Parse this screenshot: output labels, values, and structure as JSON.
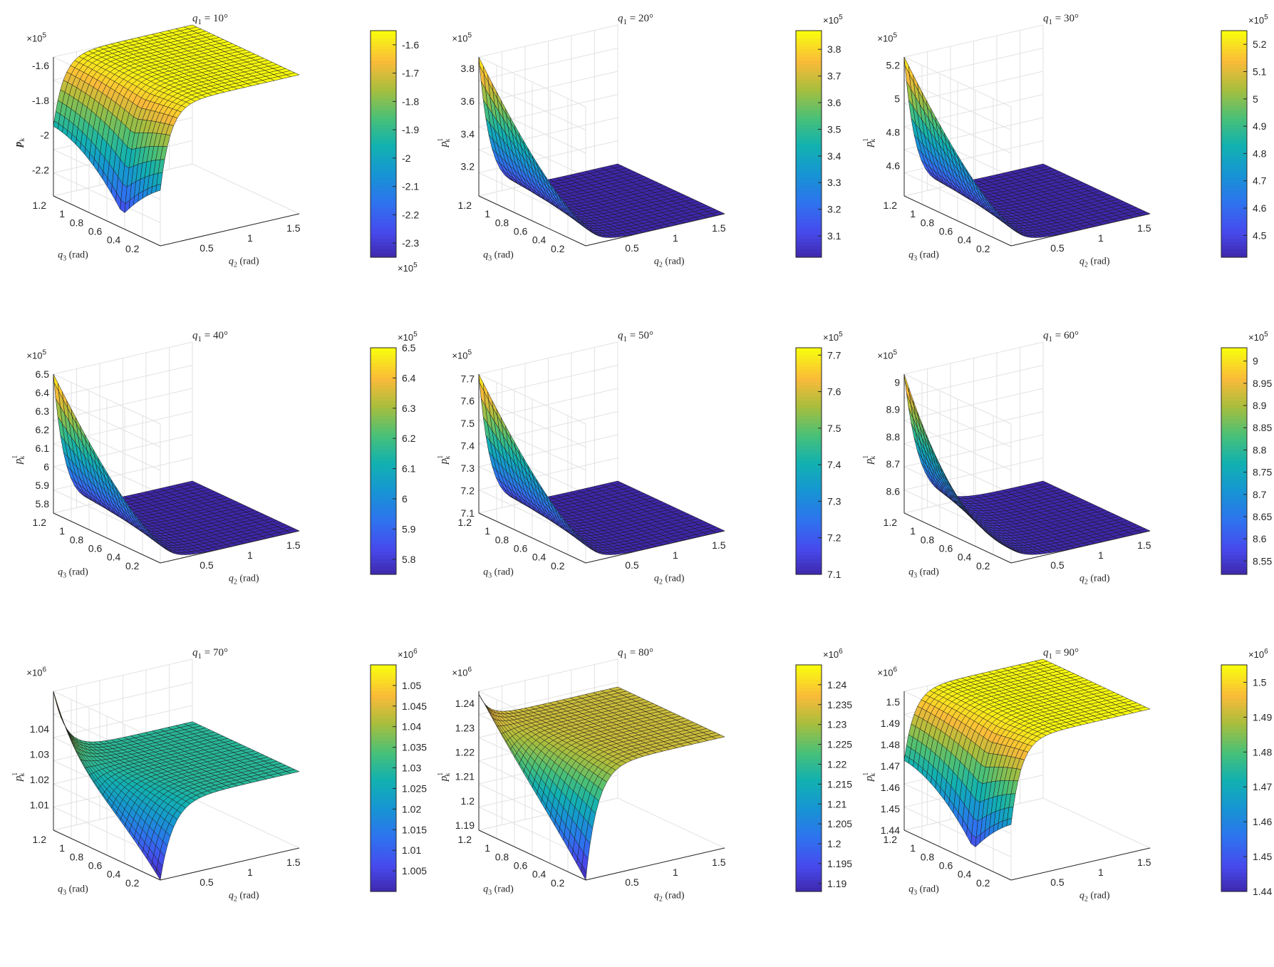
{
  "chart_data": [
    {
      "type": "surface",
      "title": "q_1 = 10°",
      "title_main": "q",
      "title_sub": "1",
      "title_rest": " = 10°",
      "zlabel_main": "p",
      "zlabel_sub": "k",
      "zlabel_sup": "",
      "z_exponent": "×10^5",
      "z_ticks": [
        "-1.6",
        "-1.8",
        "-2",
        "-2.2"
      ],
      "cbar_exponent": "×10^5",
      "cbar_ticks": [
        "-1.6",
        "-1.7",
        "-1.8",
        "-1.9",
        "-2",
        "-2.1",
        "-2.2",
        "-2.3"
      ],
      "cbar_exp_position": "bottom",
      "zlim": [
        -2.35,
        -1.55
      ],
      "clim": [
        -2.35,
        -1.55
      ],
      "shape": "plateau_high",
      "xlabel": "q_2 (rad)",
      "ylabel": "q_3 (rad)",
      "x_ticks": [
        "0.5",
        "1",
        "1.5"
      ],
      "y_ticks": [
        "0.2",
        "0.4",
        "0.6",
        "0.8",
        "1",
        "1.2"
      ]
    },
    {
      "type": "surface",
      "title": "q_1 = 20°",
      "title_main": "q",
      "title_sub": "1",
      "title_rest": " = 20°",
      "zlabel_main": "p",
      "zlabel_sub": "k",
      "zlabel_sup": "1",
      "z_exponent": "×10^5",
      "z_ticks": [
        "3.8",
        "3.6",
        "3.4",
        "3.2"
      ],
      "cbar_exponent": "×10^5",
      "cbar_ticks": [
        "3.8",
        "3.7",
        "3.6",
        "3.5",
        "3.4",
        "3.3",
        "3.2",
        "3.1"
      ],
      "cbar_exp_position": "top",
      "zlim": [
        3.02,
        3.87
      ],
      "clim": [
        3.02,
        3.87
      ],
      "shape": "ridge_low",
      "xlabel": "q_2 (rad)",
      "ylabel": "q_3 (rad)",
      "x_ticks": [
        "0.5",
        "1",
        "1.5"
      ],
      "y_ticks": [
        "0.2",
        "0.4",
        "0.6",
        "0.8",
        "1",
        "1.2"
      ]
    },
    {
      "type": "surface",
      "title": "q_1 = 30°",
      "title_main": "q",
      "title_sub": "1",
      "title_rest": " = 30°",
      "zlabel_main": "p",
      "zlabel_sub": "k",
      "zlabel_sup": "1",
      "z_exponent": "×10^5",
      "z_ticks": [
        "5.2",
        "5",
        "4.8",
        "4.6"
      ],
      "cbar_exponent": "×10^5",
      "cbar_ticks": [
        "5.2",
        "5.1",
        "5",
        "4.9",
        "4.8",
        "4.7",
        "4.6",
        "4.5"
      ],
      "cbar_exp_position": "top",
      "zlim": [
        4.42,
        5.25
      ],
      "clim": [
        4.42,
        5.25
      ],
      "shape": "ridge_low",
      "xlabel": "q_2 (rad)",
      "ylabel": "q_3 (rad)",
      "x_ticks": [
        "0.5",
        "1",
        "1.5"
      ],
      "y_ticks": [
        "0.2",
        "0.4",
        "0.6",
        "0.8",
        "1",
        "1.2"
      ]
    },
    {
      "type": "surface",
      "title": "q_1 = 40°",
      "title_main": "q",
      "title_sub": "1",
      "title_rest": " = 40°",
      "zlabel_main": "p",
      "zlabel_sub": "k",
      "zlabel_sup": "1",
      "z_exponent": "×10^5",
      "z_ticks": [
        "6.5",
        "6.4",
        "6.3",
        "6.2",
        "6.1",
        "6",
        "5.9",
        "5.8"
      ],
      "cbar_exponent": "×10^5",
      "cbar_ticks": [
        "6.5",
        "6.4",
        "6.3",
        "6.2",
        "6.1",
        "6",
        "5.9",
        "5.8"
      ],
      "cbar_exp_position": "top",
      "zlim": [
        5.75,
        6.5
      ],
      "clim": [
        5.75,
        6.5
      ],
      "shape": "ridge_low",
      "xlabel": "q_2 (rad)",
      "ylabel": "q_3 (rad)",
      "x_ticks": [
        "0.5",
        "1",
        "1.5"
      ],
      "y_ticks": [
        "0.2",
        "0.4",
        "0.6",
        "0.8",
        "1",
        "1.2"
      ]
    },
    {
      "type": "surface",
      "title": "q_1 = 50°",
      "title_main": "q",
      "title_sub": "1",
      "title_rest": " = 50°",
      "zlabel_main": "p",
      "zlabel_sub": "k",
      "zlabel_sup": "1",
      "z_exponent": "×10^5",
      "z_ticks": [
        "7.7",
        "7.6",
        "7.5",
        "7.4",
        "7.3",
        "7.2",
        "7.1"
      ],
      "cbar_exponent": "×10^5",
      "cbar_ticks": [
        "7.7",
        "7.6",
        "7.5",
        "7.4",
        "7.3",
        "7.2",
        "7.1"
      ],
      "cbar_exp_position": "top",
      "zlim": [
        7.1,
        7.72
      ],
      "clim": [
        7.1,
        7.72
      ],
      "shape": "ridge_low",
      "xlabel": "q_2 (rad)",
      "ylabel": "q_3 (rad)",
      "x_ticks": [
        "0.5",
        "1",
        "1.5"
      ],
      "y_ticks": [
        "0.2",
        "0.4",
        "0.6",
        "0.8",
        "1",
        "1.2"
      ]
    },
    {
      "type": "surface",
      "title": "q_1 = 60°",
      "title_main": "q",
      "title_sub": "1",
      "title_rest": " = 60°",
      "zlabel_main": "p",
      "zlabel_sub": "k",
      "zlabel_sup": "1",
      "z_exponent": "×10^5",
      "z_ticks": [
        "9",
        "8.9",
        "8.8",
        "8.7",
        "8.6"
      ],
      "cbar_exponent": "×10^5",
      "cbar_ticks": [
        "9",
        "8.95",
        "8.9",
        "8.85",
        "8.8",
        "8.75",
        "8.7",
        "8.65",
        "8.6",
        "8.55"
      ],
      "cbar_exp_position": "top",
      "zlim": [
        8.52,
        9.03
      ],
      "clim": [
        8.52,
        9.03
      ],
      "shape": "ridge_drop",
      "xlabel": "q_2 (rad)",
      "ylabel": "q_3 (rad)",
      "x_ticks": [
        "0.5",
        "1",
        "1.5"
      ],
      "y_ticks": [
        "0.2",
        "0.4",
        "0.6",
        "0.8",
        "1",
        "1.2"
      ]
    },
    {
      "type": "surface",
      "title": "q_1 = 70°",
      "title_main": "q",
      "title_sub": "1",
      "title_rest": " = 70°",
      "zlabel_main": "p",
      "zlabel_sub": "k",
      "zlabel_sup": "1",
      "z_exponent": "×10^6",
      "z_ticks": [
        "1.04",
        "1.03",
        "1.02",
        "1.01"
      ],
      "cbar_exponent": "×10^6",
      "cbar_ticks": [
        "1.05",
        "1.045",
        "1.04",
        "1.035",
        "1.03",
        "1.025",
        "1.02",
        "1.015",
        "1.01",
        "1.005"
      ],
      "cbar_exp_position": "top",
      "zlim": [
        1.0,
        1.055
      ],
      "clim": [
        1.0,
        1.055
      ],
      "shape": "mid_plateau",
      "xlabel": "q_2 (rad)",
      "ylabel": "q_3 (rad)",
      "x_ticks": [
        "0.5",
        "1",
        "1.5"
      ],
      "y_ticks": [
        "0.2",
        "0.4",
        "0.6",
        "0.8",
        "1",
        "1.2"
      ]
    },
    {
      "type": "surface",
      "title": "q_1 = 80°",
      "title_main": "q",
      "title_sub": "1",
      "title_rest": " = 80°",
      "zlabel_main": "p",
      "zlabel_sub": "k",
      "zlabel_sup": "1",
      "z_exponent": "×10^6",
      "z_ticks": [
        "1.24",
        "1.23",
        "1.22",
        "1.21",
        "1.2",
        "1.19"
      ],
      "cbar_exponent": "×10^6",
      "cbar_ticks": [
        "1.24",
        "1.235",
        "1.23",
        "1.225",
        "1.22",
        "1.215",
        "1.21",
        "1.205",
        "1.2",
        "1.195",
        "1.19"
      ],
      "cbar_exp_position": "top",
      "zlim": [
        1.188,
        1.245
      ],
      "clim": [
        1.188,
        1.245
      ],
      "shape": "orange_plateau",
      "xlabel": "q_2 (rad)",
      "ylabel": "q_3 (rad)",
      "x_ticks": [
        "0.5",
        "1",
        "1.5"
      ],
      "y_ticks": [
        "0.2",
        "0.4",
        "0.6",
        "0.8",
        "1",
        "1.2"
      ]
    },
    {
      "type": "surface",
      "title": "q_1 = 90°",
      "title_main": "q",
      "title_sub": "1",
      "title_rest": " = 90°",
      "zlabel_main": "p",
      "zlabel_sub": "k",
      "zlabel_sup": "1",
      "z_exponent": "×10^6",
      "z_ticks": [
        "1.5",
        "1.49",
        "1.48",
        "1.47",
        "1.46",
        "1.45",
        "1.44"
      ],
      "cbar_exponent": "×10^6",
      "cbar_ticks": [
        "1.5",
        "1.49",
        "1.48",
        "1.47",
        "1.46",
        "1.45",
        "1.44"
      ],
      "cbar_exp_position": "top",
      "zlim": [
        1.44,
        1.505
      ],
      "clim": [
        1.44,
        1.505
      ],
      "shape": "plateau_high",
      "xlabel": "q_2 (rad)",
      "ylabel": "q_3 (rad)",
      "x_ticks": [
        "0.5",
        "1",
        "1.5"
      ],
      "y_ticks": [
        "0.2",
        "0.4",
        "0.6",
        "0.8",
        "1",
        "1.2"
      ]
    }
  ]
}
